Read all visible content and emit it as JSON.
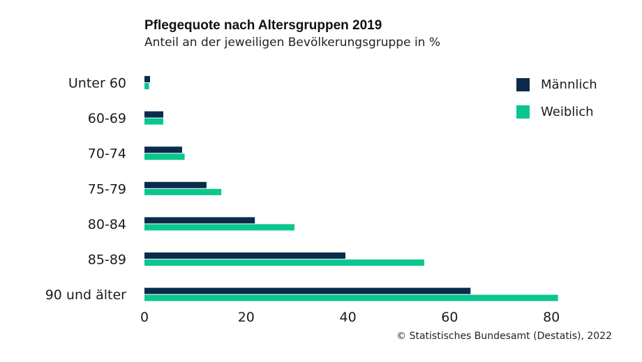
{
  "colors": {
    "maennlich": "#0a2c4a",
    "weiblich": "#0bc68e"
  },
  "source": "© Statistisches Bundesamt (Destatis), 2022",
  "chart_data": {
    "type": "bar",
    "orientation": "horizontal",
    "title": "Pflegequote nach Altersgruppen 2019",
    "subtitle": "Anteil an der jeweiligen Bevölkerungsgruppe in %",
    "xlabel": "",
    "ylabel": "",
    "xlim": [
      0,
      80
    ],
    "xticks": [
      0,
      20,
      40,
      60,
      80
    ],
    "grid": false,
    "legend_position": "top-right",
    "categories": [
      "Unter 60",
      "60-69",
      "70-74",
      "75-79",
      "80-84",
      "85-89",
      "90 und älter"
    ],
    "series": [
      {
        "name": "Männlich",
        "values": [
          1.1,
          3.7,
          7.4,
          12.2,
          21.7,
          39.5,
          64.1
        ]
      },
      {
        "name": "Weiblich",
        "values": [
          0.9,
          3.7,
          7.9,
          15.1,
          29.5,
          55.0,
          81.3
        ]
      }
    ]
  }
}
